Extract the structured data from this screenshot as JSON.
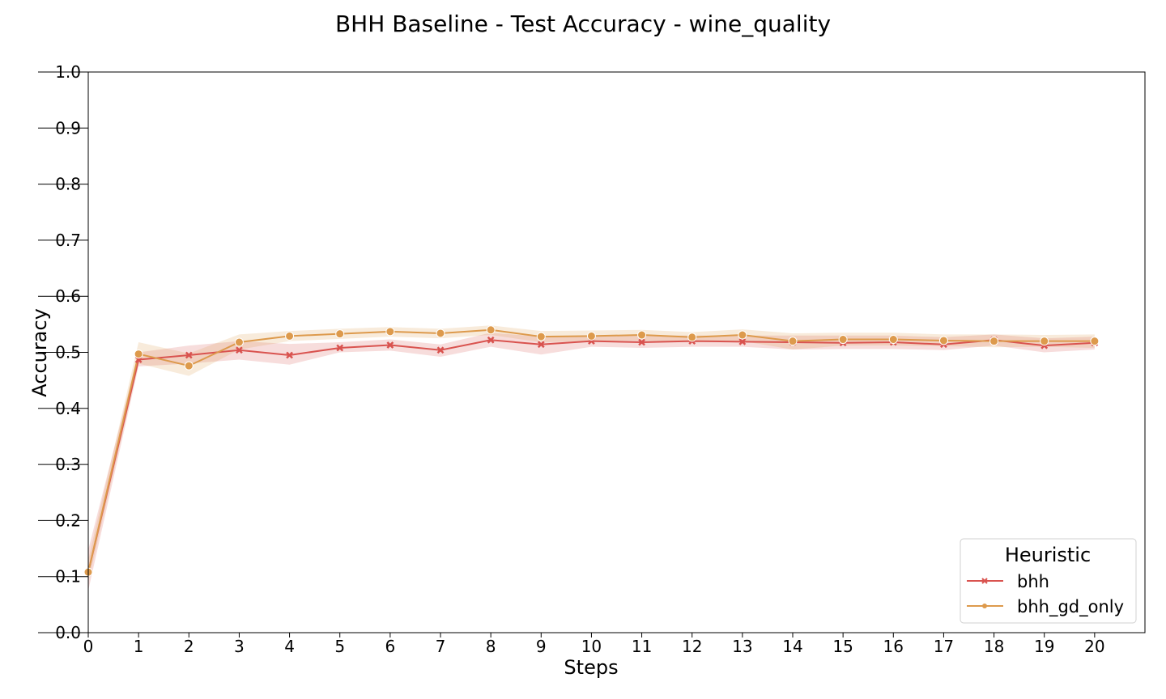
{
  "chart_data": {
    "type": "line",
    "title": "BHH Baseline - Test Accuracy - wine_quality",
    "xlabel": "Steps",
    "ylabel": "Accuracy",
    "x": [
      0,
      1,
      2,
      3,
      4,
      5,
      6,
      7,
      8,
      9,
      10,
      11,
      12,
      13,
      14,
      15,
      16,
      17,
      18,
      19,
      20
    ],
    "xlim": [
      0,
      21
    ],
    "ylim": [
      0.0,
      1.0
    ],
    "yticks": [
      "0.0",
      "0.1",
      "0.2",
      "0.3",
      "0.4",
      "0.5",
      "0.6",
      "0.7",
      "0.8",
      "0.9",
      "1.0"
    ],
    "xticks": [
      "0",
      "1",
      "2",
      "3",
      "4",
      "5",
      "6",
      "7",
      "8",
      "9",
      "10",
      "11",
      "12",
      "13",
      "14",
      "15",
      "16",
      "17",
      "18",
      "19",
      "20"
    ],
    "grid": false,
    "legend": {
      "title": "Heuristic",
      "position": "bottom-right"
    },
    "series": [
      {
        "name": "bhh",
        "color": "#d9534f",
        "marker": "x",
        "values": [
          0.108,
          0.487,
          0.495,
          0.504,
          0.495,
          0.508,
          0.513,
          0.504,
          0.522,
          0.514,
          0.52,
          0.518,
          0.52,
          0.519,
          0.518,
          0.517,
          0.518,
          0.514,
          0.522,
          0.512,
          0.517
        ],
        "ci_low": [
          0.075,
          0.475,
          0.48,
          0.487,
          0.478,
          0.5,
          0.503,
          0.492,
          0.51,
          0.496,
          0.51,
          0.508,
          0.51,
          0.51,
          0.505,
          0.506,
          0.506,
          0.504,
          0.512,
          0.5,
          0.505
        ],
        "ci_high": [
          0.148,
          0.5,
          0.512,
          0.52,
          0.515,
          0.518,
          0.523,
          0.514,
          0.535,
          0.528,
          0.53,
          0.53,
          0.53,
          0.53,
          0.53,
          0.53,
          0.53,
          0.527,
          0.532,
          0.525,
          0.528
        ]
      },
      {
        "name": "bhh_gd_only",
        "color": "#dd9a4c",
        "marker": "o",
        "values": [
          0.108,
          0.497,
          0.476,
          0.518,
          0.529,
          0.533,
          0.537,
          0.534,
          0.54,
          0.528,
          0.529,
          0.531,
          0.527,
          0.531,
          0.52,
          0.523,
          0.523,
          0.521,
          0.52,
          0.52,
          0.52
        ],
        "ci_low": [
          0.09,
          0.48,
          0.458,
          0.505,
          0.52,
          0.524,
          0.528,
          0.525,
          0.531,
          0.518,
          0.52,
          0.521,
          0.518,
          0.52,
          0.505,
          0.512,
          0.512,
          0.511,
          0.509,
          0.51,
          0.508
        ],
        "ci_high": [
          0.13,
          0.518,
          0.498,
          0.532,
          0.538,
          0.542,
          0.545,
          0.542,
          0.548,
          0.538,
          0.539,
          0.54,
          0.536,
          0.541,
          0.534,
          0.535,
          0.535,
          0.532,
          0.532,
          0.531,
          0.532
        ]
      }
    ]
  }
}
